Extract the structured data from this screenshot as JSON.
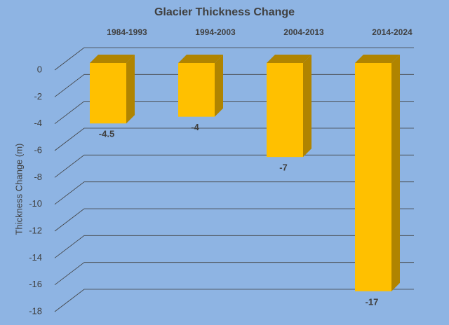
{
  "chart_data": {
    "type": "bar3d",
    "title": "Glacier Thickness Change",
    "y_label": "Thickness Change (m)",
    "categories": [
      "1984-1993",
      "1994-2003",
      "2004-2013",
      "2014-2024"
    ],
    "values": [
      -4.5,
      -4,
      -7,
      -17
    ],
    "color": "#ffc000",
    "side_color": "#b08400",
    "ylim": [
      -18,
      0
    ],
    "yticks": [
      0,
      -2,
      -4,
      -6,
      -8,
      -10,
      -12,
      -14,
      -16,
      -18
    ],
    "grid": true
  }
}
